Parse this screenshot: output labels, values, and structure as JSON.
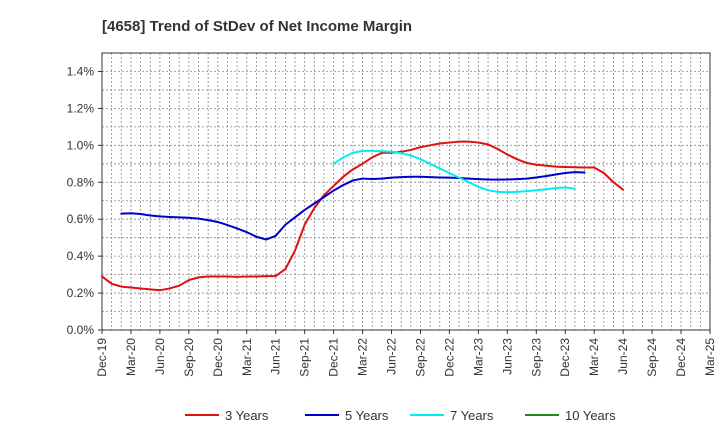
{
  "chart_data": {
    "type": "line",
    "title": "[4658]  Trend of StDev of Net Income Margin",
    "xlabel": "",
    "ylabel": "",
    "x_tick_labels": [
      "Dec-19",
      "Mar-20",
      "Jun-20",
      "Sep-20",
      "Dec-20",
      "Mar-21",
      "Jun-21",
      "Sep-21",
      "Dec-21",
      "Mar-22",
      "Jun-22",
      "Sep-22",
      "Dec-22",
      "Mar-23",
      "Jun-23",
      "Sep-23",
      "Dec-23",
      "Mar-24",
      "Jun-24",
      "Sep-24",
      "Dec-24",
      "Mar-25"
    ],
    "y_tick_labels": [
      "0.0%",
      "0.2%",
      "0.4%",
      "0.6%",
      "0.8%",
      "1.0%",
      "1.2%",
      "1.4%"
    ],
    "ylim": [
      0,
      1.5
    ],
    "grid": true,
    "legend_position": "bottom",
    "series": [
      {
        "name": "3 Years",
        "color": "#dd1111",
        "values": [
          0.29,
          0.25,
          0.235,
          0.23,
          0.225,
          0.22,
          0.215,
          0.225,
          0.24,
          0.27,
          0.285,
          0.29,
          0.29,
          0.29,
          0.288,
          0.29,
          0.29,
          0.292,
          0.292,
          0.33,
          0.43,
          0.57,
          0.66,
          0.73,
          0.78,
          0.83,
          0.87,
          0.9,
          0.935,
          0.96,
          0.96,
          0.965,
          0.975,
          0.99,
          1.0,
          1.01,
          1.015,
          1.02,
          1.02,
          1.015,
          1.005,
          0.98,
          0.95,
          0.925,
          0.905,
          0.895,
          0.89,
          0.885,
          0.883,
          0.881,
          0.88,
          0.88,
          0.85,
          0.8,
          0.76
        ]
      },
      {
        "name": "5 Years",
        "color": "#0000cc",
        "values": [
          null,
          null,
          0.63,
          0.632,
          0.628,
          0.62,
          0.615,
          0.612,
          0.61,
          0.608,
          0.603,
          0.595,
          0.585,
          0.568,
          0.55,
          0.53,
          0.505,
          0.49,
          0.51,
          0.57,
          0.61,
          0.65,
          0.685,
          0.72,
          0.755,
          0.785,
          0.81,
          0.82,
          0.818,
          0.82,
          0.825,
          0.828,
          0.83,
          0.83,
          0.828,
          0.826,
          0.825,
          0.823,
          0.82,
          0.817,
          0.815,
          0.814,
          0.815,
          0.817,
          0.82,
          0.826,
          0.833,
          0.842,
          0.85,
          0.855,
          0.853
        ]
      },
      {
        "name": "7 Years",
        "color": "#00eeee",
        "values": [
          null,
          null,
          null,
          null,
          null,
          null,
          null,
          null,
          null,
          null,
          null,
          null,
          null,
          null,
          null,
          null,
          null,
          null,
          null,
          null,
          null,
          null,
          null,
          null,
          0.9,
          0.935,
          0.96,
          0.97,
          0.97,
          0.968,
          0.965,
          0.958,
          0.945,
          0.925,
          0.9,
          0.875,
          0.85,
          0.825,
          0.8,
          0.775,
          0.757,
          0.748,
          0.746,
          0.748,
          0.752,
          0.757,
          0.762,
          0.768,
          0.772,
          0.765
        ]
      },
      {
        "name": "10 Years",
        "color": "#228822",
        "values": []
      }
    ]
  }
}
